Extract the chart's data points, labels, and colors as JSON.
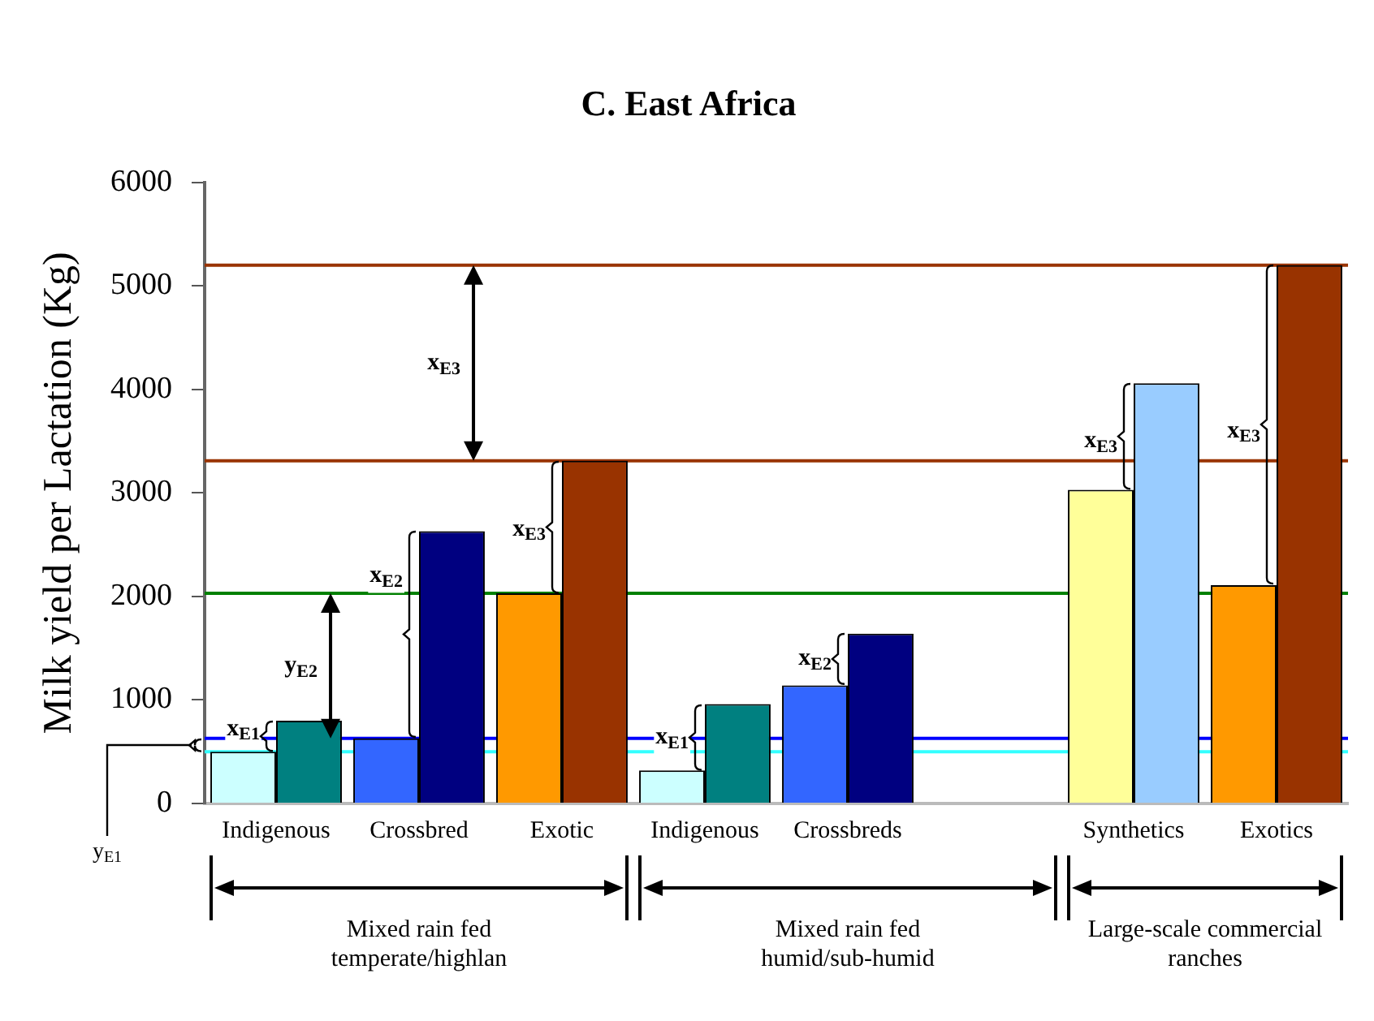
{
  "chart_data": {
    "type": "bar",
    "title": "C. East Africa",
    "ylabel": "Milk yield per Lactation (Kg)",
    "categories": [
      "Indigenous",
      "Crossbred",
      "Exotic",
      "Indigenous",
      "Crossbreds",
      null,
      "Synthetics",
      "Exotics"
    ],
    "series": [
      {
        "colors": [
          "#ccffff",
          "#3366ff",
          "#ff9900",
          "#ccffff",
          "#3366ff",
          "#ffffff",
          "#ffff99",
          "#ff9900"
        ],
        "values": [
          500,
          630,
          2030,
          320,
          1140,
          null,
          3030,
          2110
        ]
      },
      {
        "colors": [
          "#008080",
          "#000080",
          "#993300",
          "#008080",
          "#000080",
          "#ffffff",
          "#99ccff",
          "#993300"
        ],
        "values": [
          800,
          2630,
          3310,
          960,
          1640,
          null,
          4060,
          5200
        ]
      }
    ],
    "ylim": [
      0,
      6000
    ],
    "yticks": [
      0,
      1000,
      2000,
      3000,
      4000,
      5000,
      6000
    ],
    "grid": false,
    "legend": false,
    "ref_lines": [
      {
        "axis": "y",
        "value": 500,
        "color": "#33ffff"
      },
      {
        "axis": "y",
        "value": 630,
        "color": "#0000ff"
      },
      {
        "axis": "y",
        "value": 2030,
        "color": "#008000"
      },
      {
        "axis": "y",
        "value": 3310,
        "color": "#993300"
      },
      {
        "axis": "y",
        "value": 5200,
        "color": "#993300"
      }
    ],
    "annotations": [
      {
        "text": "x$_{E1}$",
        "x": "Indigenous",
        "y": 720
      },
      {
        "text": "x$_{E2}$",
        "x": "Crossbred",
        "y": 2200
      },
      {
        "text": "x$_{E3}$",
        "x": "Exotic",
        "y": 2650
      },
      {
        "text": "x$_{E2}$",
        "x": "Crossbreds",
        "y": 1400
      },
      {
        "text": "x$_{E3}$",
        "x": "Synthetics",
        "y": 3500
      },
      {
        "text": "x$_{E3}$",
        "x": "Exotics",
        "y": 3600
      },
      "y$_{E1}$",
      "y$_{E2}$",
      "x$_{E3}$",
      {
        "text": "x$_{E1}$",
        "y": 640
      },
      "Mixed rain fed temperate/highlan",
      "Mixed rain fed humid/sub-humid",
      "Large-scale commercial ranches"
    ]
  }
}
